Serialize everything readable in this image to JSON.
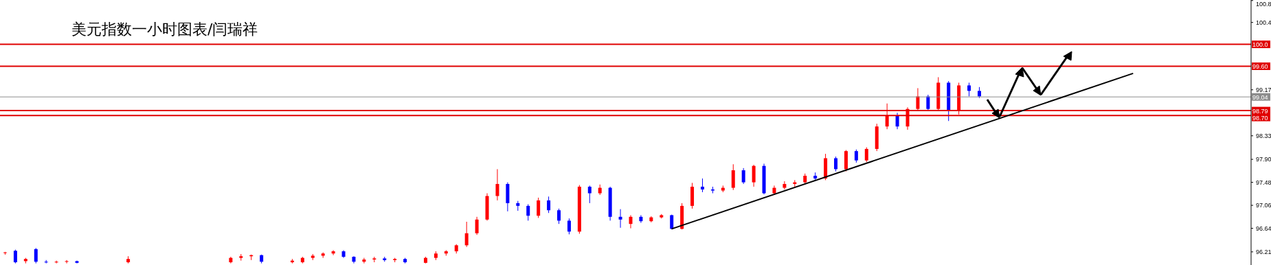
{
  "chart_data": {
    "type": "candlestick",
    "title": "美元指数一小时图表/闫瑞祥",
    "categories": [
      null,
      null,
      null,
      null,
      null,
      null,
      null,
      null,
      null,
      null,
      null,
      null,
      null,
      null,
      null,
      null,
      null,
      null,
      null,
      null,
      null,
      null,
      null,
      null,
      null,
      null,
      null,
      null,
      null,
      null,
      null,
      null,
      null,
      null,
      null,
      null,
      null,
      null,
      null,
      null,
      null,
      null,
      null,
      null,
      null,
      null,
      null,
      null,
      null,
      null,
      null,
      null,
      null,
      null,
      null,
      null,
      null,
      null,
      null,
      null,
      null,
      null,
      null,
      null,
      null,
      null,
      null,
      null,
      null,
      null,
      null,
      null,
      null,
      null,
      null,
      null,
      null,
      null,
      null,
      null,
      null,
      null,
      null,
      null,
      null,
      null,
      null,
      null,
      null,
      null,
      null,
      null,
      null,
      null,
      null,
      null,
      null,
      null,
      null,
      null,
      null,
      null,
      null,
      null,
      null,
      null,
      null,
      null,
      null,
      null,
      null,
      null,
      null,
      null,
      null,
      null,
      null,
      null,
      null,
      null,
      null,
      null
    ],
    "ohlc": [
      [
        96.19,
        96.21,
        96.16,
        96.2
      ],
      [
        96.23,
        96.25,
        96.0,
        96.02
      ],
      [
        96.04,
        96.1,
        96.0,
        96.08
      ],
      [
        96.26,
        96.28,
        96.0,
        96.03
      ],
      [
        96.03,
        96.06,
        96.0,
        96.02
      ],
      [
        96.02,
        96.05,
        96.0,
        96.03
      ],
      [
        96.03,
        96.06,
        96.0,
        96.04
      ],
      [
        96.04,
        96.05,
        96.0,
        96.01
      ],
      null,
      null,
      null,
      null,
      [
        96.02,
        96.13,
        96.0,
        96.08
      ],
      null,
      null,
      null,
      null,
      null,
      null,
      null,
      null,
      null,
      [
        96.02,
        96.12,
        96.0,
        96.1
      ],
      [
        96.1,
        96.17,
        96.05,
        96.13
      ],
      [
        96.13,
        96.16,
        96.06,
        96.15
      ],
      [
        96.15,
        96.16,
        96.0,
        96.03
      ],
      null,
      null,
      [
        96.02,
        96.08,
        96.0,
        96.05
      ],
      [
        96.02,
        96.12,
        96.0,
        96.1
      ],
      [
        96.1,
        96.17,
        96.06,
        96.14
      ],
      [
        96.14,
        96.2,
        96.1,
        96.18
      ],
      [
        96.18,
        96.24,
        96.15,
        96.22
      ],
      [
        96.22,
        96.24,
        96.1,
        96.12
      ],
      [
        96.12,
        96.13,
        96.0,
        96.03
      ],
      [
        96.03,
        96.1,
        96.0,
        96.07
      ],
      [
        96.07,
        96.12,
        96.02,
        96.09
      ],
      [
        96.09,
        96.12,
        96.03,
        96.06
      ],
      [
        96.06,
        96.1,
        96.02,
        96.08
      ],
      [
        96.08,
        96.1,
        96.0,
        96.02
      ],
      null,
      [
        96.01,
        96.12,
        96.0,
        96.1
      ],
      [
        96.1,
        96.22,
        96.06,
        96.18
      ],
      [
        96.18,
        96.24,
        96.14,
        96.22
      ],
      [
        96.22,
        96.35,
        96.18,
        96.33
      ],
      [
        96.33,
        96.76,
        96.3,
        96.55
      ],
      [
        96.55,
        96.85,
        96.52,
        96.8
      ],
      [
        96.8,
        97.28,
        96.78,
        97.23
      ],
      [
        97.23,
        97.72,
        97.15,
        97.45
      ],
      [
        97.45,
        97.48,
        96.95,
        97.1
      ],
      [
        97.1,
        97.14,
        96.96,
        97.05
      ],
      [
        97.05,
        97.08,
        96.78,
        96.87
      ],
      [
        96.87,
        97.2,
        96.83,
        97.15
      ],
      [
        97.15,
        97.22,
        96.92,
        96.97
      ],
      [
        96.97,
        97.0,
        96.72,
        96.78
      ],
      [
        96.78,
        96.82,
        96.53,
        96.58
      ],
      [
        96.58,
        97.43,
        96.54,
        97.4
      ],
      [
        97.4,
        97.42,
        97.1,
        97.28
      ],
      [
        97.28,
        97.44,
        97.25,
        97.38
      ],
      [
        97.38,
        97.4,
        96.78,
        96.85
      ],
      [
        96.85,
        96.99,
        96.65,
        96.8
      ],
      [
        96.72,
        96.88,
        96.64,
        96.85
      ],
      [
        96.85,
        96.88,
        96.74,
        96.77
      ],
      [
        96.77,
        96.86,
        96.75,
        96.84
      ],
      [
        96.84,
        96.9,
        96.82,
        96.88
      ],
      [
        96.88,
        96.89,
        96.62,
        96.63
      ],
      [
        96.63,
        97.1,
        96.62,
        97.05
      ],
      [
        97.05,
        97.47,
        97.0,
        97.4
      ],
      [
        97.4,
        97.55,
        97.3,
        97.35
      ],
      [
        97.35,
        97.4,
        97.28,
        97.33
      ],
      [
        97.33,
        97.42,
        97.3,
        97.38
      ],
      [
        97.38,
        97.81,
        97.34,
        97.7
      ],
      [
        97.7,
        97.74,
        97.45,
        97.48
      ],
      [
        97.48,
        97.8,
        97.4,
        97.78
      ],
      [
        97.78,
        97.82,
        97.26,
        97.28
      ],
      [
        97.28,
        97.42,
        97.25,
        97.38
      ],
      [
        97.38,
        97.5,
        97.35,
        97.45
      ],
      [
        97.45,
        97.52,
        97.4,
        97.48
      ],
      [
        97.48,
        97.64,
        97.45,
        97.6
      ],
      [
        97.6,
        97.66,
        97.5,
        97.55
      ],
      [
        97.55,
        98.0,
        97.52,
        97.92
      ],
      [
        97.92,
        97.95,
        97.68,
        97.72
      ],
      [
        97.72,
        98.07,
        97.68,
        98.05
      ],
      [
        98.05,
        98.08,
        97.84,
        97.88
      ],
      [
        97.88,
        98.12,
        97.85,
        98.09
      ],
      [
        98.09,
        98.55,
        98.05,
        98.5
      ],
      [
        98.5,
        98.92,
        98.45,
        98.7
      ],
      [
        98.7,
        98.75,
        98.45,
        98.5
      ],
      [
        98.5,
        98.85,
        98.44,
        98.82
      ],
      [
        98.82,
        99.2,
        98.78,
        99.05
      ],
      [
        99.05,
        99.08,
        98.78,
        98.82
      ],
      [
        98.82,
        99.4,
        98.8,
        99.3
      ],
      [
        99.3,
        99.33,
        98.6,
        98.78
      ],
      [
        98.78,
        99.3,
        98.72,
        99.25
      ],
      [
        99.25,
        99.3,
        99.05,
        99.15
      ],
      [
        99.15,
        99.22,
        99.02,
        99.05
      ],
      null,
      null,
      null,
      null,
      null,
      null,
      null,
      null,
      null,
      null,
      null,
      null,
      null,
      null,
      null,
      null,
      null,
      null,
      null,
      null,
      null,
      null,
      null,
      null,
      null,
      null
    ],
    "colors": [
      "#ff0000",
      "#0000ff",
      "#ff0000",
      "#0000ff",
      "#0000ff",
      "#ff0000",
      "#ff0000",
      "#0000ff",
      null,
      null,
      null,
      null,
      "#ff0000",
      null,
      null,
      null,
      null,
      null,
      null,
      null,
      null,
      null,
      "#ff0000",
      "#ff0000",
      "#ff0000",
      "#0000ff",
      null,
      null,
      "#ff0000",
      "#ff0000",
      "#ff0000",
      "#ff0000",
      "#ff0000",
      "#0000ff",
      "#0000ff",
      "#ff0000",
      "#ff0000",
      "#0000ff",
      "#ff0000",
      "#0000ff",
      null,
      "#ff0000",
      "#ff0000",
      "#ff0000",
      "#ff0000",
      "#ff0000",
      "#ff0000",
      "#ff0000",
      "#ff0000",
      "#0000ff",
      "#0000ff",
      "#0000ff",
      "#ff0000",
      "#0000ff",
      "#0000ff",
      "#0000ff",
      "#ff0000",
      "#0000ff",
      "#ff0000",
      "#0000ff",
      "#0000ff",
      "#ff0000",
      "#0000ff",
      "#ff0000",
      "#ff0000",
      "#0000ff",
      "#ff0000",
      "#ff0000",
      "#0000ff",
      "#0000ff",
      "#ff0000",
      "#ff0000",
      "#0000ff",
      "#ff0000",
      "#0000ff",
      "#ff0000",
      "#ff0000",
      "#ff0000",
      "#ff0000",
      "#0000ff",
      "#ff0000",
      "#0000ff",
      "#ff0000",
      "#0000ff",
      "#ff0000",
      "#ff0000",
      "#ff0000",
      "#0000ff",
      "#ff0000",
      "#ff0000",
      "#0000ff",
      "#ff0000",
      "#0000ff",
      "#ff0000",
      "#0000ff",
      "#0000ff",
      null,
      null,
      null,
      null,
      null,
      null,
      null,
      null,
      null,
      null,
      null,
      null,
      null,
      null,
      null,
      null,
      null,
      null,
      null,
      null,
      null,
      null,
      null,
      null,
      null,
      null
    ],
    "series": [
      {
        "type": "line",
        "color": "#000000",
        "values": [
          null,
          null,
          null,
          null,
          null,
          null,
          null,
          null,
          null,
          null,
          null,
          null,
          null,
          null,
          null,
          null,
          null,
          null,
          null,
          null,
          null,
          null,
          null,
          null,
          null,
          null,
          null,
          null,
          null,
          null,
          null,
          null,
          null,
          null,
          null,
          null,
          null,
          null,
          null,
          null,
          null,
          null,
          null,
          null,
          null,
          null,
          null,
          null,
          null,
          null,
          null,
          null,
          null,
          null,
          null,
          null,
          null,
          null,
          null,
          null,
          null,
          null,
          null,
          null,
          null,
          96.63,
          null,
          null,
          null,
          null,
          null,
          null,
          null,
          null,
          null,
          null,
          null,
          null,
          null,
          null,
          null,
          null,
          null,
          null,
          null,
          null,
          null,
          null,
          null,
          null,
          null,
          null,
          null,
          null,
          null,
          null,
          null,
          null,
          null,
          null,
          null,
          null,
          null,
          null,
          null,
          null,
          null,
          null,
          null,
          null,
          99.47,
          null,
          null,
          null,
          null,
          null,
          null,
          null,
          null,
          null,
          null,
          null
        ]
      }
    ],
    "ylim": [
      95.97,
      100.81
    ],
    "yticks": [
      96.21,
      96.64,
      97.06,
      97.48,
      {
        "value": 97.9,
        "label": "97.90"
      },
      98.33,
      99.17,
      100.4,
      100.8
    ],
    "ref_lines": [
      {
        "axis": "y",
        "value": 100.0,
        "label": "100.0",
        "color": "#e00000"
      },
      {
        "axis": "y",
        "value": 99.6,
        "label": "99.60",
        "color": "#e00000"
      },
      {
        "axis": "y",
        "value": 99.04,
        "label": "99.04",
        "color": "#8c8c8c"
      },
      {
        "axis": "y",
        "value": 98.79,
        "label": "98.79",
        "color": "#e00000"
      },
      {
        "axis": "y",
        "value": 98.7,
        "label": "98.70",
        "color": "#e00000"
      }
    ],
    "tick_labels": "y"
  }
}
